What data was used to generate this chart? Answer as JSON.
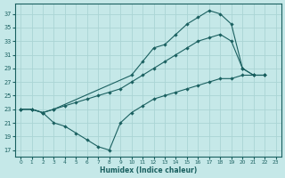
{
  "xlabel": "Humidex (Indice chaleur)",
  "bg_color": "#c5e8e8",
  "grid_color": "#aad4d4",
  "line_color": "#1a6060",
  "xlim": [
    -0.5,
    23.5
  ],
  "ylim": [
    16.0,
    38.5
  ],
  "xticks": [
    0,
    1,
    2,
    3,
    4,
    5,
    6,
    7,
    8,
    9,
    10,
    11,
    12,
    13,
    14,
    15,
    16,
    17,
    18,
    19,
    20,
    21,
    22,
    23
  ],
  "yticks": [
    17,
    19,
    21,
    23,
    25,
    27,
    29,
    31,
    33,
    35,
    37
  ],
  "line1_x": [
    0,
    1,
    2,
    3,
    10,
    11,
    12,
    13,
    14,
    15,
    16,
    17,
    18,
    19,
    20,
    21,
    22
  ],
  "line1_y": [
    23,
    23,
    22.5,
    23,
    28,
    30,
    32,
    32.5,
    34,
    35.5,
    36.5,
    37.5,
    37,
    35.5,
    29,
    28,
    28
  ],
  "line2_x": [
    0,
    1,
    2,
    3,
    4,
    5,
    6,
    7,
    8,
    9,
    10,
    11,
    12,
    13,
    14,
    15,
    16,
    17,
    18,
    19,
    20,
    21,
    22
  ],
  "line2_y": [
    23,
    23,
    22.5,
    23,
    23.5,
    24,
    24.5,
    25,
    25.5,
    26,
    27,
    28,
    29,
    30,
    31,
    32,
    33,
    33.5,
    34,
    33,
    29,
    28,
    28
  ],
  "line3_x": [
    0,
    1,
    2,
    3,
    4,
    5,
    6,
    7,
    8,
    9,
    10,
    11,
    12,
    13,
    14,
    15,
    16,
    17,
    18,
    19,
    20,
    21,
    22
  ],
  "line3_y": [
    23,
    23,
    22.5,
    21,
    20.5,
    19.5,
    18.5,
    17.5,
    17,
    21,
    22.5,
    23.5,
    24.5,
    25,
    25.5,
    26,
    26.5,
    27,
    27.5,
    27.5,
    28,
    28,
    28
  ]
}
